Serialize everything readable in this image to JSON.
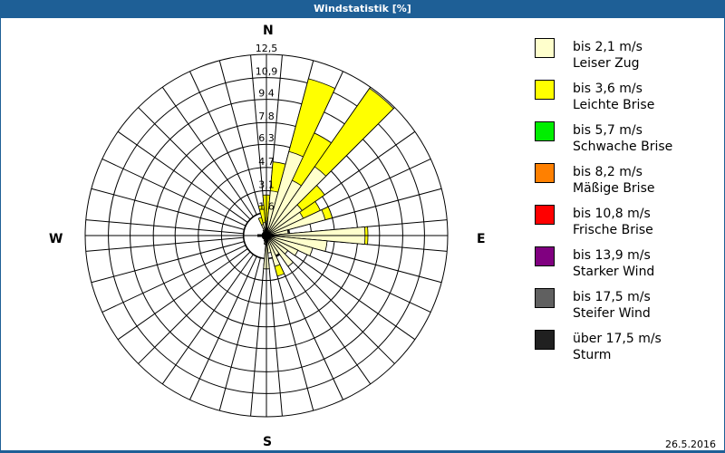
{
  "title": "Windstatistik [%]",
  "date": "26.5.2016",
  "compass": {
    "n": "N",
    "e": "E",
    "s": "S",
    "w": "W"
  },
  "legend": [
    {
      "speed": "bis 2,1 m/s",
      "name": "Leiser Zug",
      "color": "#ffffcc"
    },
    {
      "speed": "bis 3,6 m/s",
      "name": "Leichte Brise",
      "color": "#ffff00"
    },
    {
      "speed": "bis 5,7 m/s",
      "name": "Schwache Brise",
      "color": "#00ee00"
    },
    {
      "speed": "bis 8,2 m/s",
      "name": "Mäßige Brise",
      "color": "#ff8000"
    },
    {
      "speed": "bis 10,8 m/s",
      "name": "Frische Brise",
      "color": "#ff0000"
    },
    {
      "speed": "bis 13,9 m/s",
      "name": "Starker Wind",
      "color": "#800080"
    },
    {
      "speed": "bis 17,5 m/s",
      "name": "Steifer Wind",
      "color": "#606060"
    },
    {
      "speed": "über 17,5 m/s",
      "name": "Sturm",
      "color": "#202020"
    }
  ],
  "chart_data": {
    "type": "wind-rose",
    "title": "Windstatistik [%]",
    "unit": "%",
    "radial_ticks": [
      "1,6",
      "3,1",
      "4,7",
      "6,3",
      "7,8",
      "9,4",
      "10,9",
      "12,5"
    ],
    "radial_tick_values": [
      1.6,
      3.1,
      4.7,
      6.3,
      7.8,
      9.4,
      10.9,
      12.5
    ],
    "rmax": 12.5,
    "sector_width_deg": 10,
    "series_names": [
      "bis 2,1 m/s Leiser Zug",
      "bis 3,6 m/s Leichte Brise"
    ],
    "sectors": [
      {
        "dir": 0,
        "light": 1.0,
        "yellow": 2.8
      },
      {
        "dir": 10,
        "light": 3.1,
        "yellow": 5.1
      },
      {
        "dir": 20,
        "light": 6.0,
        "yellow": 11.2
      },
      {
        "dir": 30,
        "light": 4.2,
        "yellow": 7.8
      },
      {
        "dir": 40,
        "light": 5.8,
        "yellow": 12.4
      },
      {
        "dir": 50,
        "light": 3.0,
        "yellow": 4.9
      },
      {
        "dir": 60,
        "light": 2.8,
        "yellow": 4.1
      },
      {
        "dir": 70,
        "light": 4.2,
        "yellow": 4.7
      },
      {
        "dir": 80,
        "light": 1.5,
        "yellow": 1.5
      },
      {
        "dir": 90,
        "light": 6.8,
        "yellow": 7.0
      },
      {
        "dir": 100,
        "light": 4.2,
        "yellow": 4.2
      },
      {
        "dir": 110,
        "light": 3.3,
        "yellow": 3.3
      },
      {
        "dir": 120,
        "light": 2.4,
        "yellow": 2.4
      },
      {
        "dir": 130,
        "light": 1.8,
        "yellow": 1.8
      },
      {
        "dir": 140,
        "light": 2.6,
        "yellow": 2.6
      },
      {
        "dir": 150,
        "light": 1.5,
        "yellow": 1.5
      },
      {
        "dir": 160,
        "light": 2.2,
        "yellow": 2.9
      },
      {
        "dir": 170,
        "light": 1.2,
        "yellow": 1.2
      },
      {
        "dir": 180,
        "light": 2.3,
        "yellow": 2.3
      },
      {
        "dir": 190,
        "light": 0.6,
        "yellow": 0.6
      },
      {
        "dir": 200,
        "light": 0.4,
        "yellow": 0.4
      },
      {
        "dir": 210,
        "light": 0.3,
        "yellow": 0.3
      },
      {
        "dir": 220,
        "light": 0.3,
        "yellow": 0.3
      },
      {
        "dir": 230,
        "light": 0.3,
        "yellow": 0.3
      },
      {
        "dir": 240,
        "light": 0.3,
        "yellow": 0.3
      },
      {
        "dir": 250,
        "light": 0.3,
        "yellow": 0.3
      },
      {
        "dir": 260,
        "light": 0.3,
        "yellow": 0.3
      },
      {
        "dir": 270,
        "light": 0.3,
        "yellow": 0.3
      },
      {
        "dir": 280,
        "light": 0.3,
        "yellow": 0.3
      },
      {
        "dir": 290,
        "light": 0.3,
        "yellow": 0.3
      },
      {
        "dir": 300,
        "light": 0.3,
        "yellow": 0.3
      },
      {
        "dir": 310,
        "light": 0.3,
        "yellow": 0.3
      },
      {
        "dir": 320,
        "light": 0.3,
        "yellow": 0.3
      },
      {
        "dir": 330,
        "light": 0.4,
        "yellow": 0.4
      },
      {
        "dir": 340,
        "light": 0.8,
        "yellow": 1.3
      },
      {
        "dir": 350,
        "light": 0.9,
        "yellow": 2.1
      }
    ],
    "grid": true,
    "legend_position": "right"
  }
}
